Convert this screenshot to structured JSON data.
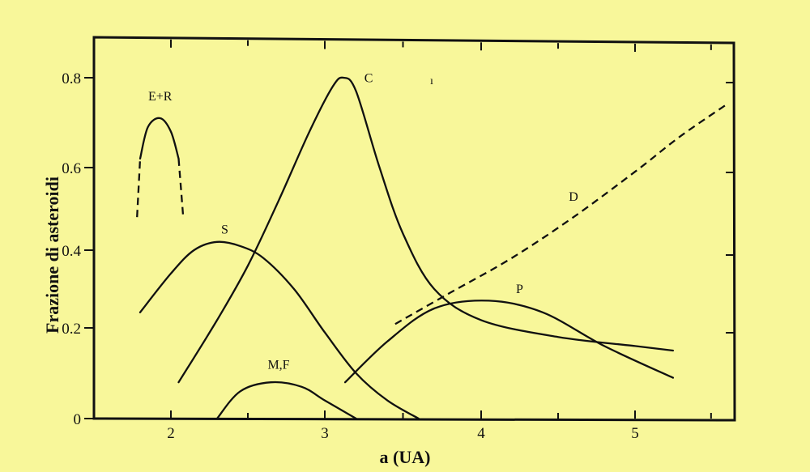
{
  "chart_data": {
    "type": "line",
    "title": "",
    "xlabel": "a (UA)",
    "ylabel": "Frazione di asteroidi",
    "xlim": [
      1.5,
      5.65
    ],
    "ylim": [
      0,
      0.88
    ],
    "x_ticks": [
      2,
      3,
      4,
      5
    ],
    "x_tick_labels": [
      "2",
      "3",
      "4",
      "5"
    ],
    "x_minor_ticks": [
      2.5,
      3.5,
      4.5,
      5.5
    ],
    "y_ticks": [
      0,
      0.2,
      0.4,
      0.6,
      0.8
    ],
    "y_tick_labels": [
      "0",
      "0.2",
      "0.4",
      "0.6",
      "0.8"
    ],
    "grid": false,
    "legend": "inline labels on curves",
    "series": [
      {
        "name": "E+R",
        "style": "solid with dashed ends",
        "x": [
          1.78,
          1.8,
          1.85,
          1.93,
          2.0,
          2.05,
          2.08
        ],
        "y": [
          0.48,
          0.62,
          0.69,
          0.71,
          0.68,
          0.62,
          0.48
        ],
        "dashed_segments": [
          [
            1.78,
            1.8
          ],
          [
            2.05,
            2.08
          ]
        ]
      },
      {
        "name": "S",
        "style": "solid",
        "x": [
          1.8,
          2.0,
          2.15,
          2.3,
          2.45,
          2.6,
          2.8,
          3.0,
          3.2,
          3.4,
          3.6
        ],
        "y": [
          0.24,
          0.34,
          0.4,
          0.42,
          0.41,
          0.38,
          0.3,
          0.19,
          0.1,
          0.04,
          0.0
        ]
      },
      {
        "name": "C",
        "style": "solid",
        "x": [
          2.05,
          2.3,
          2.5,
          2.7,
          2.9,
          3.05,
          3.12,
          3.2,
          3.35,
          3.5,
          3.7,
          4.0,
          4.5,
          5.0,
          5.25
        ],
        "y": [
          0.08,
          0.22,
          0.36,
          0.52,
          0.68,
          0.78,
          0.8,
          0.77,
          0.6,
          0.44,
          0.3,
          0.22,
          0.18,
          0.16,
          0.15
        ]
      },
      {
        "name": "M,F",
        "style": "solid",
        "x": [
          2.3,
          2.45,
          2.65,
          2.85,
          3.0,
          3.2
        ],
        "y": [
          0.0,
          0.06,
          0.08,
          0.07,
          0.04,
          0.0
        ]
      },
      {
        "name": "P",
        "style": "solid",
        "x": [
          3.13,
          3.4,
          3.7,
          4.05,
          4.4,
          4.8,
          5.25
        ],
        "y": [
          0.08,
          0.17,
          0.25,
          0.27,
          0.24,
          0.16,
          0.09
        ]
      },
      {
        "name": "D",
        "style": "dashed",
        "x": [
          3.45,
          3.8,
          4.2,
          4.6,
          5.0,
          5.3,
          5.6
        ],
        "y": [
          0.21,
          0.29,
          0.38,
          0.48,
          0.59,
          0.67,
          0.74
        ]
      }
    ],
    "annotations": [
      {
        "text": "E+R",
        "x": 1.93,
        "y": 0.75
      },
      {
        "text": "S",
        "x": 2.35,
        "y": 0.44
      },
      {
        "text": "C",
        "x": 3.28,
        "y": 0.79
      },
      {
        "text": "M,F",
        "x": 2.7,
        "y": 0.11
      },
      {
        "text": "P",
        "x": 4.25,
        "y": 0.29
      },
      {
        "text": "D",
        "x": 4.6,
        "y": 0.52
      }
    ]
  }
}
